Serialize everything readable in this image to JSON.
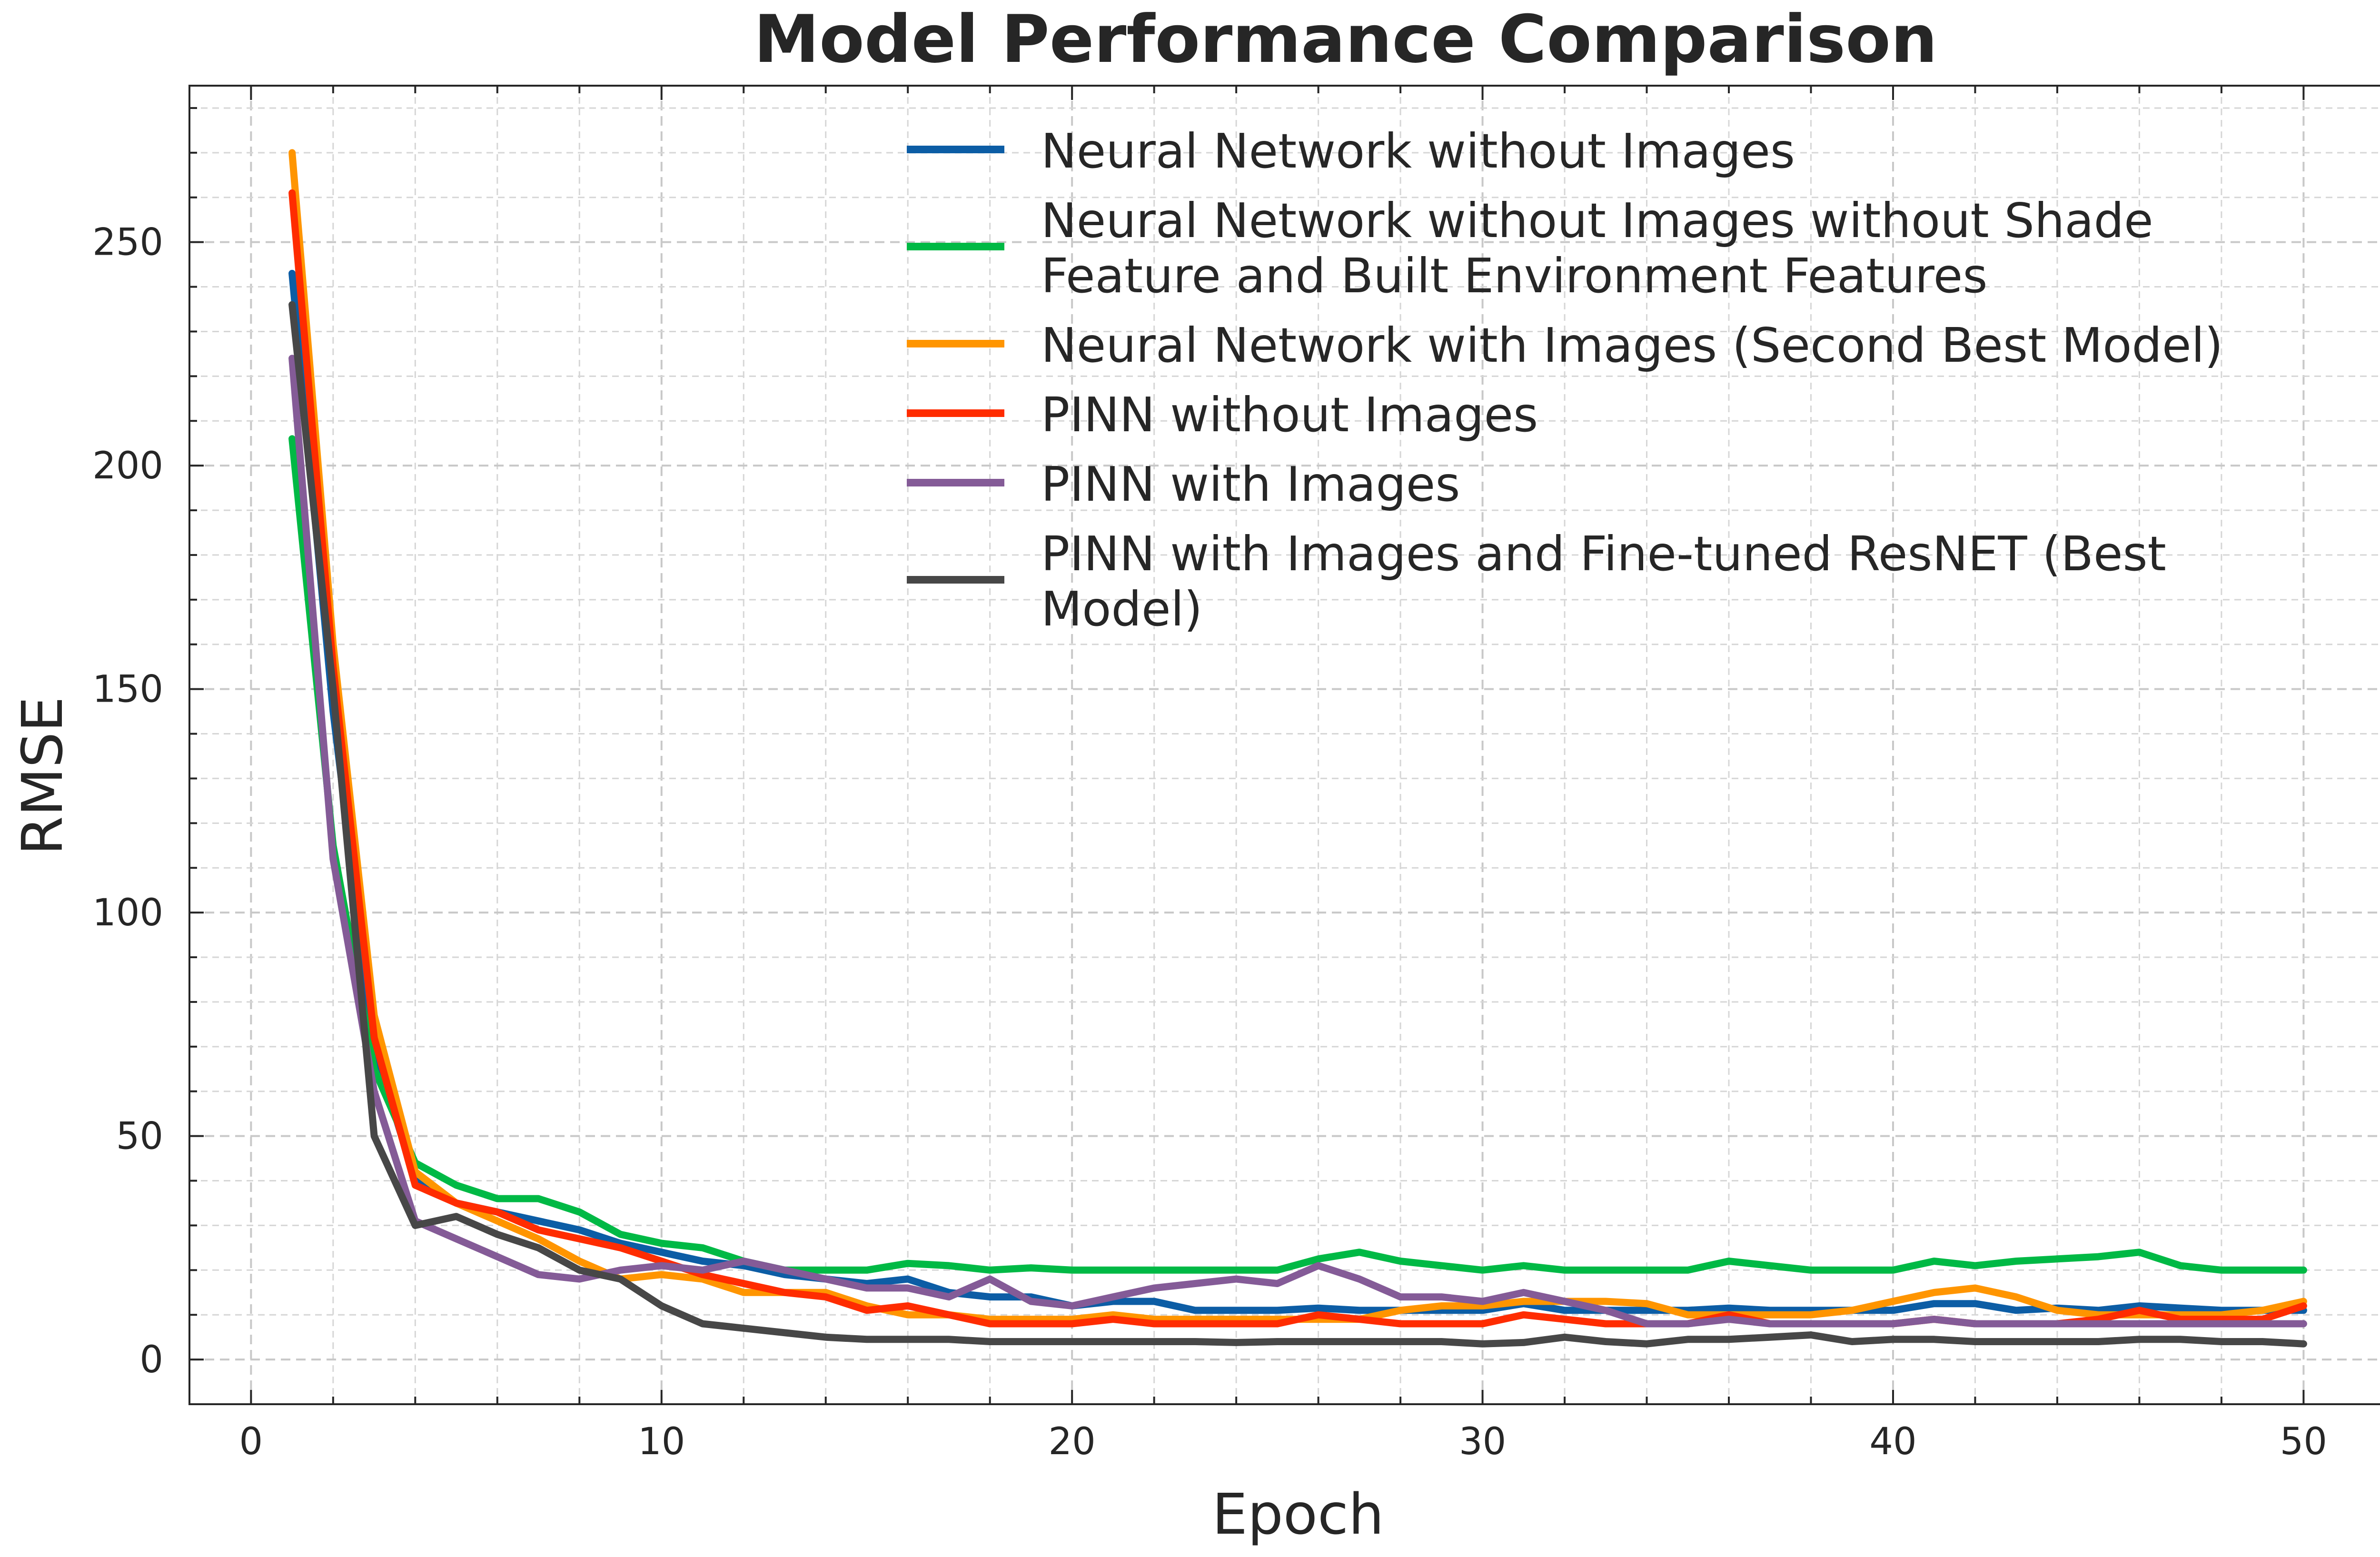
{
  "chart_data": {
    "type": "line",
    "title": "Model Performance Comparison",
    "xlabel": "Epoch",
    "ylabel": "RMSE",
    "xlim": [
      -1.5,
      52.5
    ],
    "ylim": [
      -10,
      285
    ],
    "xticks": [
      0,
      10,
      20,
      30,
      40,
      50
    ],
    "yticks": [
      0,
      50,
      100,
      150,
      200,
      250
    ],
    "grid": true,
    "legend_position": "top-right",
    "x": [
      1,
      2,
      3,
      4,
      5,
      6,
      7,
      8,
      9,
      10,
      11,
      12,
      13,
      14,
      15,
      16,
      17,
      18,
      19,
      20,
      21,
      22,
      23,
      24,
      25,
      26,
      27,
      28,
      29,
      30,
      31,
      32,
      33,
      34,
      35,
      36,
      37,
      38,
      39,
      40,
      41,
      42,
      43,
      44,
      45,
      46,
      47,
      48,
      49,
      50
    ],
    "series": [
      {
        "name": "Neural Network without Images",
        "color": "#0C5DA5",
        "values": [
          243,
          145,
          70,
          40,
          35,
          33,
          31,
          29,
          26,
          24,
          22,
          21,
          19,
          18,
          17,
          18,
          15,
          14,
          14,
          12,
          13,
          13,
          11,
          11,
          11,
          11.5,
          11,
          11,
          11,
          11,
          12.5,
          11,
          11,
          11,
          11,
          11.5,
          11,
          11,
          11,
          11,
          12.5,
          12.5,
          11,
          11.5,
          11,
          12,
          11.5,
          11,
          11,
          11
        ]
      },
      {
        "name": "Neural Network without Images without Shade Feature and Built Environment Features",
        "color": "#00B945",
        "values": [
          206,
          115,
          65,
          44,
          39,
          36,
          36,
          33,
          28,
          26,
          25,
          22,
          20,
          20,
          20,
          21.5,
          21,
          20,
          20.5,
          20,
          20,
          20,
          20,
          20,
          20,
          22.5,
          24,
          22,
          21,
          20,
          21,
          20,
          20,
          20,
          20,
          22,
          21,
          20,
          20,
          20,
          22,
          21,
          22,
          22.5,
          23,
          24,
          21,
          20,
          20,
          20
        ]
      },
      {
        "name": "Neural Network with Images (Second Best Model)",
        "color": "#FF9500",
        "values": [
          270,
          160,
          77,
          42,
          35,
          31,
          27,
          22,
          18,
          19,
          18,
          15,
          15,
          15,
          12,
          10,
          10,
          9,
          9,
          9,
          10,
          9,
          9,
          9,
          9,
          9,
          9,
          11,
          12,
          12,
          13,
          13,
          13,
          12.5,
          10,
          10,
          10,
          10,
          11,
          13,
          15,
          16,
          14,
          11,
          10,
          10,
          10,
          10,
          11,
          13
        ]
      },
      {
        "name": "PINN without Images",
        "color": "#FF2C00",
        "values": [
          261,
          155,
          72,
          39,
          35,
          33,
          29,
          27,
          25,
          22,
          19,
          17,
          15,
          14,
          11,
          12,
          10,
          8,
          8,
          8,
          9,
          8,
          8,
          8,
          8,
          10,
          9,
          8,
          8,
          8,
          10,
          9,
          8,
          8,
          8,
          10,
          8,
          8,
          8,
          8,
          9,
          8,
          8,
          8,
          9,
          11,
          9,
          9,
          9,
          12
        ]
      },
      {
        "name": "PINN with Images",
        "color": "#845B97",
        "values": [
          224,
          112,
          60,
          31,
          27,
          23,
          19,
          18,
          20,
          21,
          20,
          22,
          20,
          18,
          16,
          16,
          14,
          18,
          13,
          12,
          14,
          16,
          17,
          18,
          17,
          21,
          18,
          14,
          14,
          13,
          15,
          13,
          11,
          8,
          8,
          9,
          8,
          8,
          8,
          8,
          9,
          8,
          8,
          8,
          8,
          8,
          8,
          8,
          8,
          8
        ]
      },
      {
        "name": "PINN with Images and Fine-tuned ResNET (Best Model)",
        "color": "#474747",
        "values": [
          236,
          150,
          50,
          30,
          32,
          28,
          25,
          20,
          18,
          12,
          8,
          7,
          6,
          5,
          4.5,
          4.5,
          4.5,
          4,
          4,
          4,
          4,
          4,
          4,
          3.8,
          4,
          4,
          4,
          4,
          4,
          3.5,
          3.8,
          5,
          4,
          3.5,
          4.5,
          4.5,
          5,
          5.5,
          4,
          4.5,
          4.5,
          4,
          4,
          4,
          4,
          4.5,
          4.5,
          4,
          4,
          3.5
        ]
      }
    ]
  }
}
